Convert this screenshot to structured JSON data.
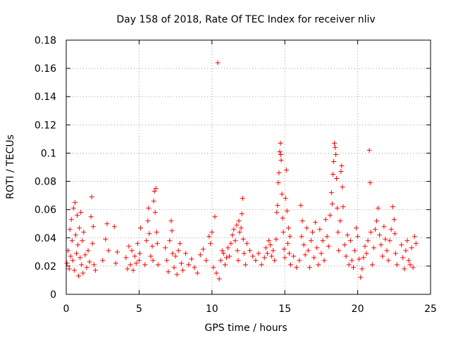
{
  "chart_data": {
    "type": "scatter",
    "title": "Day 158 of 2018, Rate Of TEC Index for receiver nliv",
    "xlabel": "GPS time / hours",
    "ylabel": "ROTI / TECUs",
    "xlim": [
      0,
      25
    ],
    "ylim": [
      0,
      0.18
    ],
    "xticks": [
      "0",
      "5",
      "10",
      "15",
      "20",
      "25"
    ],
    "yticks": [
      "0",
      "0.02",
      "0.04",
      "0.06",
      "0.08",
      "0.1",
      "0.12",
      "0.14",
      "0.16",
      "0.18"
    ],
    "grid": true,
    "marker": "+",
    "color": "#ff0000",
    "series": [
      {
        "name": "ROTI",
        "points": [
          [
            0.05,
            0.022
          ],
          [
            0.12,
            0.031
          ],
          [
            0.2,
            0.018
          ],
          [
            0.25,
            0.046
          ],
          [
            0.3,
            0.027
          ],
          [
            0.35,
            0.053
          ],
          [
            0.4,
            0.038
          ],
          [
            0.45,
            0.024
          ],
          [
            0.5,
            0.061
          ],
          [
            0.55,
            0.017
          ],
          [
            0.6,
            0.065
          ],
          [
            0.65,
            0.042
          ],
          [
            0.7,
            0.029
          ],
          [
            0.75,
            0.056
          ],
          [
            0.8,
            0.035
          ],
          [
            0.85,
            0.013
          ],
          [
            0.9,
            0.047
          ],
          [
            0.95,
            0.026
          ],
          [
            1.0,
            0.058
          ],
          [
            1.05,
            0.021
          ],
          [
            1.1,
            0.038
          ],
          [
            1.15,
            0.015
          ],
          [
            1.2,
            0.044
          ],
          [
            1.3,
            0.028
          ],
          [
            1.4,
            0.019
          ],
          [
            1.5,
            0.031
          ],
          [
            1.6,
            0.023
          ],
          [
            1.7,
            0.055
          ],
          [
            1.75,
            0.069
          ],
          [
            1.8,
            0.036
          ],
          [
            1.85,
            0.048
          ],
          [
            1.9,
            0.021
          ],
          [
            2.0,
            0.017
          ],
          [
            2.5,
            0.024
          ],
          [
            2.7,
            0.039
          ],
          [
            2.8,
            0.05
          ],
          [
            2.9,
            0.031
          ],
          [
            3.3,
            0.048
          ],
          [
            3.4,
            0.022
          ],
          [
            3.5,
            0.03
          ],
          [
            4.1,
            0.026
          ],
          [
            4.2,
            0.018
          ],
          [
            4.3,
            0.034
          ],
          [
            4.4,
            0.021
          ],
          [
            4.5,
            0.031
          ],
          [
            4.6,
            0.017
          ],
          [
            4.7,
            0.027
          ],
          [
            4.8,
            0.022
          ],
          [
            4.9,
            0.036
          ],
          [
            5.0,
            0.024
          ],
          [
            5.05,
            0.029
          ],
          [
            5.1,
            0.047
          ],
          [
            5.4,
            0.021
          ],
          [
            5.5,
            0.038
          ],
          [
            5.6,
            0.052
          ],
          [
            5.65,
            0.061
          ],
          [
            5.7,
            0.043
          ],
          [
            5.8,
            0.027
          ],
          [
            5.9,
            0.034
          ],
          [
            5.95,
            0.024
          ],
          [
            6.0,
            0.066
          ],
          [
            6.05,
            0.073
          ],
          [
            6.1,
            0.058
          ],
          [
            6.15,
            0.075
          ],
          [
            6.2,
            0.044
          ],
          [
            6.25,
            0.036
          ],
          [
            6.3,
            0.021
          ],
          [
            6.8,
            0.033
          ],
          [
            6.9,
            0.024
          ],
          [
            7.0,
            0.016
          ],
          [
            7.1,
            0.038
          ],
          [
            7.2,
            0.052
          ],
          [
            7.25,
            0.045
          ],
          [
            7.3,
            0.029
          ],
          [
            7.4,
            0.019
          ],
          [
            7.5,
            0.027
          ],
          [
            7.6,
            0.014
          ],
          [
            7.7,
            0.031
          ],
          [
            7.8,
            0.036
          ],
          [
            7.9,
            0.022
          ],
          [
            8.0,
            0.017
          ],
          [
            8.2,
            0.029
          ],
          [
            8.4,
            0.021
          ],
          [
            8.6,
            0.025
          ],
          [
            8.8,
            0.019
          ],
          [
            9.0,
            0.015
          ],
          [
            9.2,
            0.028
          ],
          [
            9.4,
            0.032
          ],
          [
            9.6,
            0.024
          ],
          [
            9.8,
            0.041
          ],
          [
            9.9,
            0.036
          ],
          [
            10.0,
            0.044
          ],
          [
            10.1,
            0.019
          ],
          [
            10.2,
            0.055
          ],
          [
            10.3,
            0.015
          ],
          [
            10.4,
            0.164
          ],
          [
            10.5,
            0.011
          ],
          [
            10.6,
            0.024
          ],
          [
            10.7,
            0.031
          ],
          [
            10.8,
            0.029
          ],
          [
            10.9,
            0.021
          ],
          [
            11.0,
            0.026
          ],
          [
            11.1,
            0.033
          ],
          [
            11.2,
            0.027
          ],
          [
            11.3,
            0.036
          ],
          [
            11.4,
            0.042
          ],
          [
            11.5,
            0.046
          ],
          [
            11.6,
            0.038
          ],
          [
            11.7,
            0.049
          ],
          [
            11.75,
            0.031
          ],
          [
            11.8,
            0.024
          ],
          [
            11.85,
            0.052
          ],
          [
            11.9,
            0.044
          ],
          [
            12.0,
            0.047
          ],
          [
            12.05,
            0.057
          ],
          [
            12.1,
            0.068
          ],
          [
            12.15,
            0.039
          ],
          [
            12.2,
            0.029
          ],
          [
            12.3,
            0.021
          ],
          [
            12.4,
            0.036
          ],
          [
            12.6,
            0.031
          ],
          [
            12.8,
            0.027
          ],
          [
            13.0,
            0.024
          ],
          [
            13.2,
            0.029
          ],
          [
            13.4,
            0.021
          ],
          [
            13.6,
            0.026
          ],
          [
            13.7,
            0.033
          ],
          [
            13.8,
            0.029
          ],
          [
            13.9,
            0.038
          ],
          [
            14.0,
            0.035
          ],
          [
            14.1,
            0.027
          ],
          [
            14.2,
            0.031
          ],
          [
            14.3,
            0.024
          ],
          [
            14.4,
            0.039
          ],
          [
            14.45,
            0.058
          ],
          [
            14.5,
            0.063
          ],
          [
            14.55,
            0.079
          ],
          [
            14.6,
            0.086
          ],
          [
            14.65,
            0.101
          ],
          [
            14.7,
            0.107
          ],
          [
            14.72,
            0.099
          ],
          [
            14.75,
            0.095
          ],
          [
            14.8,
            0.071
          ],
          [
            14.85,
            0.054
          ],
          [
            14.9,
            0.044
          ],
          [
            14.95,
            0.032
          ],
          [
            15.0,
            0.026
          ],
          [
            15.05,
            0.068
          ],
          [
            15.1,
            0.088
          ],
          [
            15.15,
            0.059
          ],
          [
            15.2,
            0.036
          ],
          [
            15.25,
            0.047
          ],
          [
            15.3,
            0.029
          ],
          [
            15.35,
            0.041
          ],
          [
            15.4,
            0.021
          ],
          [
            15.6,
            0.027
          ],
          [
            15.8,
            0.019
          ],
          [
            16.0,
            0.024
          ],
          [
            16.1,
            0.063
          ],
          [
            16.15,
            0.041
          ],
          [
            16.2,
            0.052
          ],
          [
            16.3,
            0.035
          ],
          [
            16.4,
            0.028
          ],
          [
            16.5,
            0.047
          ],
          [
            16.6,
            0.031
          ],
          [
            16.7,
            0.019
          ],
          [
            16.8,
            0.038
          ],
          [
            16.9,
            0.044
          ],
          [
            17.0,
            0.026
          ],
          [
            17.1,
            0.051
          ],
          [
            17.2,
            0.033
          ],
          [
            17.3,
            0.021
          ],
          [
            17.4,
            0.046
          ],
          [
            17.5,
            0.029
          ],
          [
            17.6,
            0.038
          ],
          [
            17.7,
            0.024
          ],
          [
            17.8,
            0.053
          ],
          [
            17.9,
            0.041
          ],
          [
            18.0,
            0.034
          ],
          [
            18.1,
            0.056
          ],
          [
            18.2,
            0.072
          ],
          [
            18.25,
            0.064
          ],
          [
            18.3,
            0.085
          ],
          [
            18.35,
            0.094
          ],
          [
            18.4,
            0.107
          ],
          [
            18.45,
            0.104
          ],
          [
            18.5,
            0.099
          ],
          [
            18.55,
            0.082
          ],
          [
            18.6,
            0.061
          ],
          [
            18.65,
            0.044
          ],
          [
            18.7,
            0.031
          ],
          [
            18.8,
            0.052
          ],
          [
            18.85,
            0.087
          ],
          [
            18.9,
            0.091
          ],
          [
            18.95,
            0.076
          ],
          [
            19.0,
            0.062
          ],
          [
            19.1,
            0.035
          ],
          [
            19.2,
            0.027
          ],
          [
            19.3,
            0.042
          ],
          [
            19.4,
            0.021
          ],
          [
            19.5,
            0.038
          ],
          [
            19.6,
            0.024
          ],
          [
            19.7,
            0.019
          ],
          [
            19.8,
            0.031
          ],
          [
            19.9,
            0.047
          ],
          [
            20.0,
            0.041
          ],
          [
            20.1,
            0.025
          ],
          [
            20.2,
            0.012
          ],
          [
            20.3,
            0.018
          ],
          [
            20.4,
            0.026
          ],
          [
            20.5,
            0.034
          ],
          [
            20.6,
            0.029
          ],
          [
            20.7,
            0.038
          ],
          [
            20.8,
            0.102
          ],
          [
            20.85,
            0.079
          ],
          [
            20.9,
            0.044
          ],
          [
            21.0,
            0.021
          ],
          [
            21.1,
            0.033
          ],
          [
            21.2,
            0.046
          ],
          [
            21.3,
            0.052
          ],
          [
            21.4,
            0.061
          ],
          [
            21.5,
            0.042
          ],
          [
            21.6,
            0.035
          ],
          [
            21.7,
            0.027
          ],
          [
            21.8,
            0.048
          ],
          [
            21.9,
            0.039
          ],
          [
            22.0,
            0.031
          ],
          [
            22.1,
            0.024
          ],
          [
            22.2,
            0.038
          ],
          [
            22.3,
            0.046
          ],
          [
            22.4,
            0.062
          ],
          [
            22.5,
            0.053
          ],
          [
            22.55,
            0.043
          ],
          [
            22.6,
            0.029
          ],
          [
            22.7,
            0.021
          ],
          [
            23.0,
            0.035
          ],
          [
            23.1,
            0.026
          ],
          [
            23.2,
            0.018
          ],
          [
            23.3,
            0.031
          ],
          [
            23.4,
            0.038
          ],
          [
            23.5,
            0.024
          ],
          [
            23.6,
            0.021
          ],
          [
            23.7,
            0.033
          ],
          [
            23.8,
            0.019
          ],
          [
            23.9,
            0.041
          ],
          [
            24.0,
            0.036
          ]
        ]
      }
    ]
  }
}
